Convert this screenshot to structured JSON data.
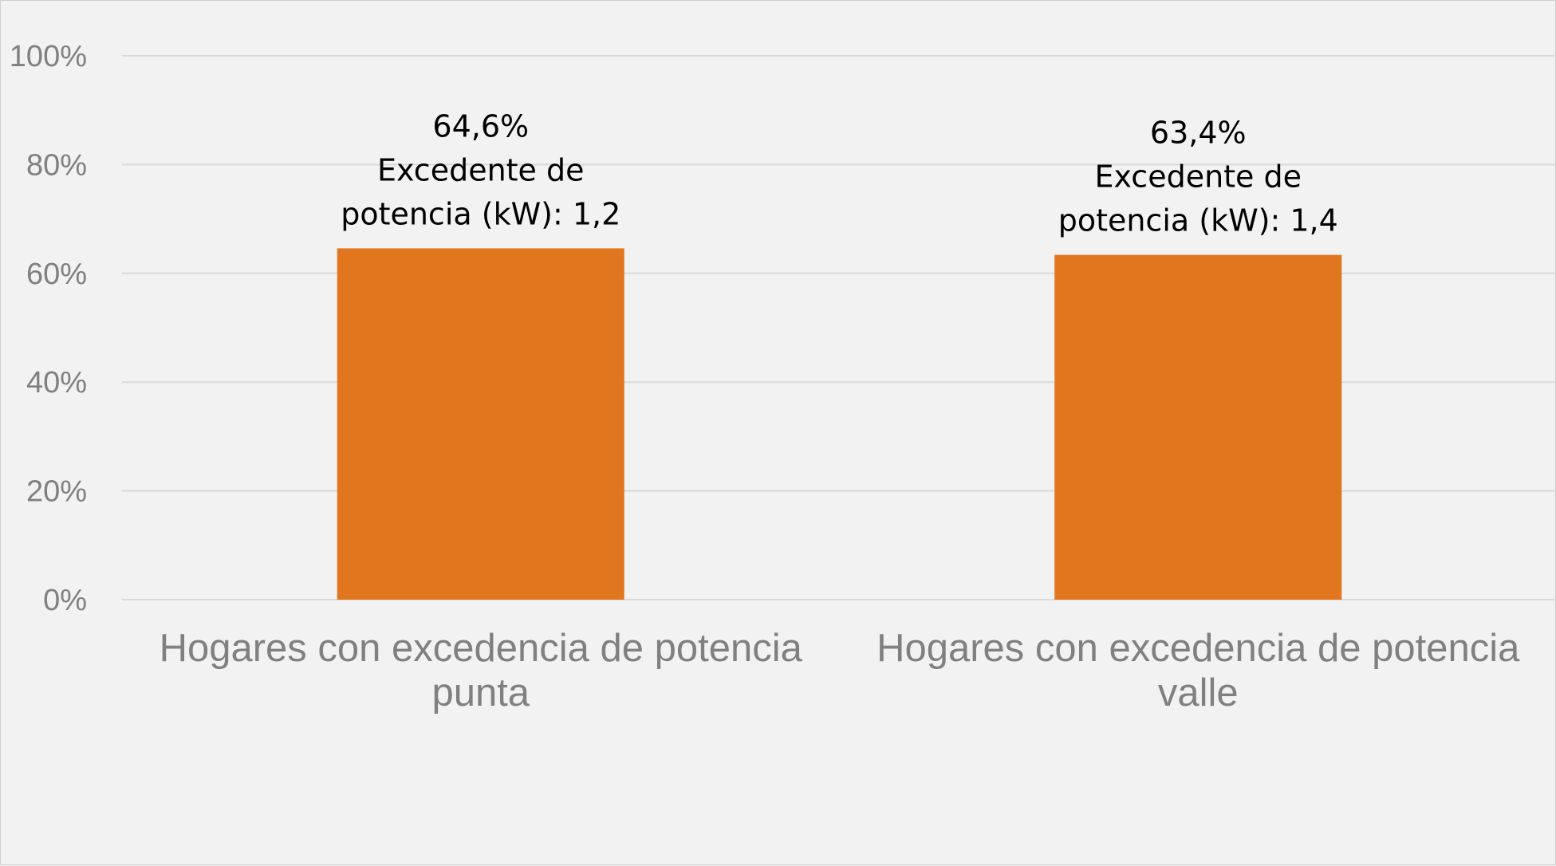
{
  "chart_data": {
    "type": "bar",
    "categories": [
      [
        "Hogares con excedencia de potencia",
        "punta"
      ],
      [
        "Hogares con excedencia de potencia",
        "valle"
      ]
    ],
    "values": [
      64.6,
      63.4
    ],
    "data_labels": [
      [
        "64,6%",
        "Excedente de",
        "potencia (kW): 1,2"
      ],
      [
        "63,4%",
        "Excedente de",
        "potencia (kW): 1,4"
      ]
    ],
    "y_ticks": [
      "0%",
      "20%",
      "40%",
      "60%",
      "80%",
      "100%"
    ],
    "ylim": [
      0,
      100
    ],
    "grid": true,
    "legend": "none",
    "title": "",
    "xlabel": "",
    "ylabel": "",
    "colors": {
      "bar": "#e2761f",
      "grid": "#d9d9d9",
      "tick_text": "#808080",
      "label_text": "#000000",
      "background": "#f2f2f2"
    }
  }
}
